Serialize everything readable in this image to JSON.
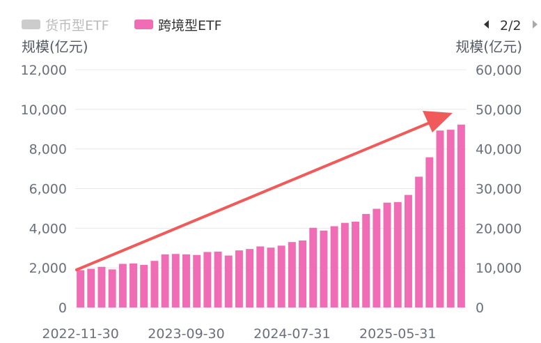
{
  "chart_data": {
    "type": "bar",
    "legend": [
      {
        "name": "货币型ETF",
        "color": "#cccccc",
        "active": false
      },
      {
        "name": "跨境型ETF",
        "color": "#f06cb4",
        "active": true
      }
    ],
    "pager": "2/2",
    "y_left": {
      "label": "规模(亿元)",
      "ticks": [
        "0",
        "2,000",
        "4,000",
        "6,000",
        "8,000",
        "10,000",
        "12,000"
      ],
      "min": 0,
      "max": 12000
    },
    "y_right": {
      "label": "规模(亿元)",
      "ticks": [
        "0",
        "10,000",
        "20,000",
        "30,000",
        "40,000",
        "50,000",
        "60,000"
      ],
      "min": 0,
      "max": 60000
    },
    "x_ticks": [
      "2022-11-30",
      "2023-09-30",
      "2024-07-31",
      "2025-05-31"
    ],
    "series": [
      {
        "name": "跨境型ETF",
        "axis": "left",
        "color": "#f06cb4",
        "values": [
          1880,
          1950,
          2050,
          1920,
          2200,
          2220,
          2150,
          2350,
          2680,
          2700,
          2680,
          2650,
          2800,
          2820,
          2620,
          2880,
          2950,
          3080,
          3020,
          3120,
          3300,
          3380,
          4020,
          3880,
          4100,
          4270,
          4330,
          4720,
          4980,
          5290,
          5320,
          5680,
          6600,
          7580,
          8930,
          8970,
          9230
        ]
      }
    ],
    "grid": true
  }
}
